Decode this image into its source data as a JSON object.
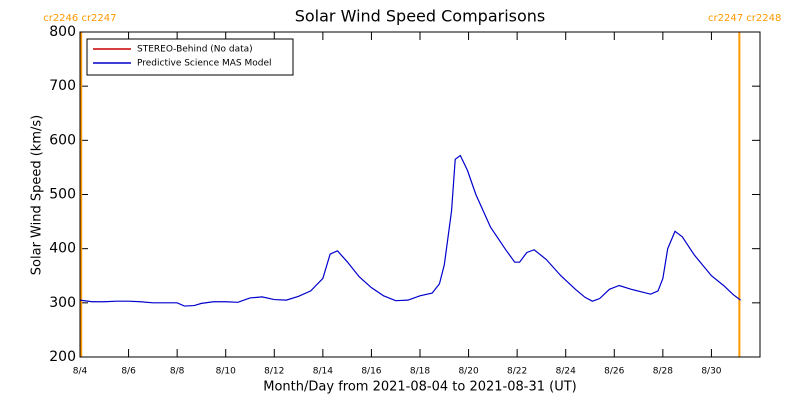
{
  "chart_data": {
    "type": "line",
    "title": "Solar Wind Speed Comparisons",
    "x_label": "Month/Day from 2021-08-04 to 2021-08-31 (UT)",
    "y_label": "Solar Wind Speed (km/s)",
    "x": [
      0,
      0.5,
      1,
      1.5,
      2,
      2.5,
      3,
      3.5,
      4,
      4.3,
      4.7,
      5,
      5.5,
      6,
      6.5,
      7,
      7.5,
      8,
      8.5,
      9,
      9.5,
      10,
      10.3,
      10.6,
      11,
      11.5,
      12,
      12.5,
      13,
      13.5,
      14,
      14.5,
      14.8,
      15,
      15.3,
      15.45,
      15.66,
      15.95,
      16.3,
      16.9,
      17.5,
      17.9,
      18.1,
      18.4,
      18.7,
      19.2,
      19.8,
      20.4,
      20.8,
      21.1,
      21.4,
      21.8,
      22.2,
      22.7,
      23.5,
      23.8,
      24,
      24.2,
      24.5,
      24.8,
      25.3,
      26,
      26.5,
      26.9,
      27.2
    ],
    "series": [
      {
        "name": "STEREO-Behind (No data)",
        "color": "#cc0000",
        "values": [
          null,
          null,
          null,
          null,
          null,
          null,
          null,
          null,
          null,
          null,
          null,
          null,
          null,
          null,
          null,
          null,
          null,
          null,
          null,
          null,
          null,
          null,
          null,
          null,
          null,
          null,
          null,
          null,
          null,
          null,
          null,
          null,
          null,
          null,
          null,
          null,
          null,
          null,
          null,
          null,
          null,
          null,
          null,
          null,
          null,
          null,
          null,
          null,
          null,
          null,
          null,
          null,
          null,
          null,
          null,
          null,
          null,
          null,
          null,
          null,
          null,
          null,
          null,
          null,
          null
        ]
      },
      {
        "name": "Predictive Science MAS Model",
        "color": "#0000cc",
        "values": [
          305,
          302,
          302,
          303,
          303,
          302,
          300,
          300,
          300,
          294,
          295,
          299,
          302,
          302,
          301,
          309,
          311,
          306,
          305,
          312,
          322,
          345,
          390,
          396,
          376,
          348,
          328,
          313,
          304,
          305,
          313,
          318,
          335,
          370,
          470,
          565,
          572,
          545,
          500,
          440,
          400,
          375,
          375,
          393,
          398,
          380,
          350,
          325,
          310,
          303,
          308,
          325,
          332,
          325,
          316,
          322,
          345,
          400,
          432,
          422,
          388,
          350,
          332,
          315,
          305
        ]
      }
    ],
    "xlim": [
      0,
      28
    ],
    "xticks": [
      {
        "value": 0,
        "label": "8/4"
      },
      {
        "value": 2,
        "label": "8/6"
      },
      {
        "value": 4,
        "label": "8/8"
      },
      {
        "value": 6,
        "label": "8/10"
      },
      {
        "value": 8,
        "label": "8/12"
      },
      {
        "value": 10,
        "label": "8/14"
      },
      {
        "value": 12,
        "label": "8/16"
      },
      {
        "value": 14,
        "label": "8/18"
      },
      {
        "value": 16,
        "label": "8/20"
      },
      {
        "value": 18,
        "label": "8/22"
      },
      {
        "value": 20,
        "label": "8/24"
      },
      {
        "value": 22,
        "label": "8/26"
      },
      {
        "value": 24,
        "label": "8/28"
      },
      {
        "value": 26,
        "label": "8/30"
      }
    ],
    "ylim": [
      200,
      800
    ],
    "yticks": [
      200,
      300,
      400,
      500,
      600,
      700,
      800
    ],
    "legend": "upper left",
    "boundary_color": "#ff9900",
    "boundaries": [
      {
        "x": 0.05,
        "label": "cr2246 cr2247"
      },
      {
        "x": 27.15,
        "label": "cr2247 cr2248"
      }
    ]
  }
}
